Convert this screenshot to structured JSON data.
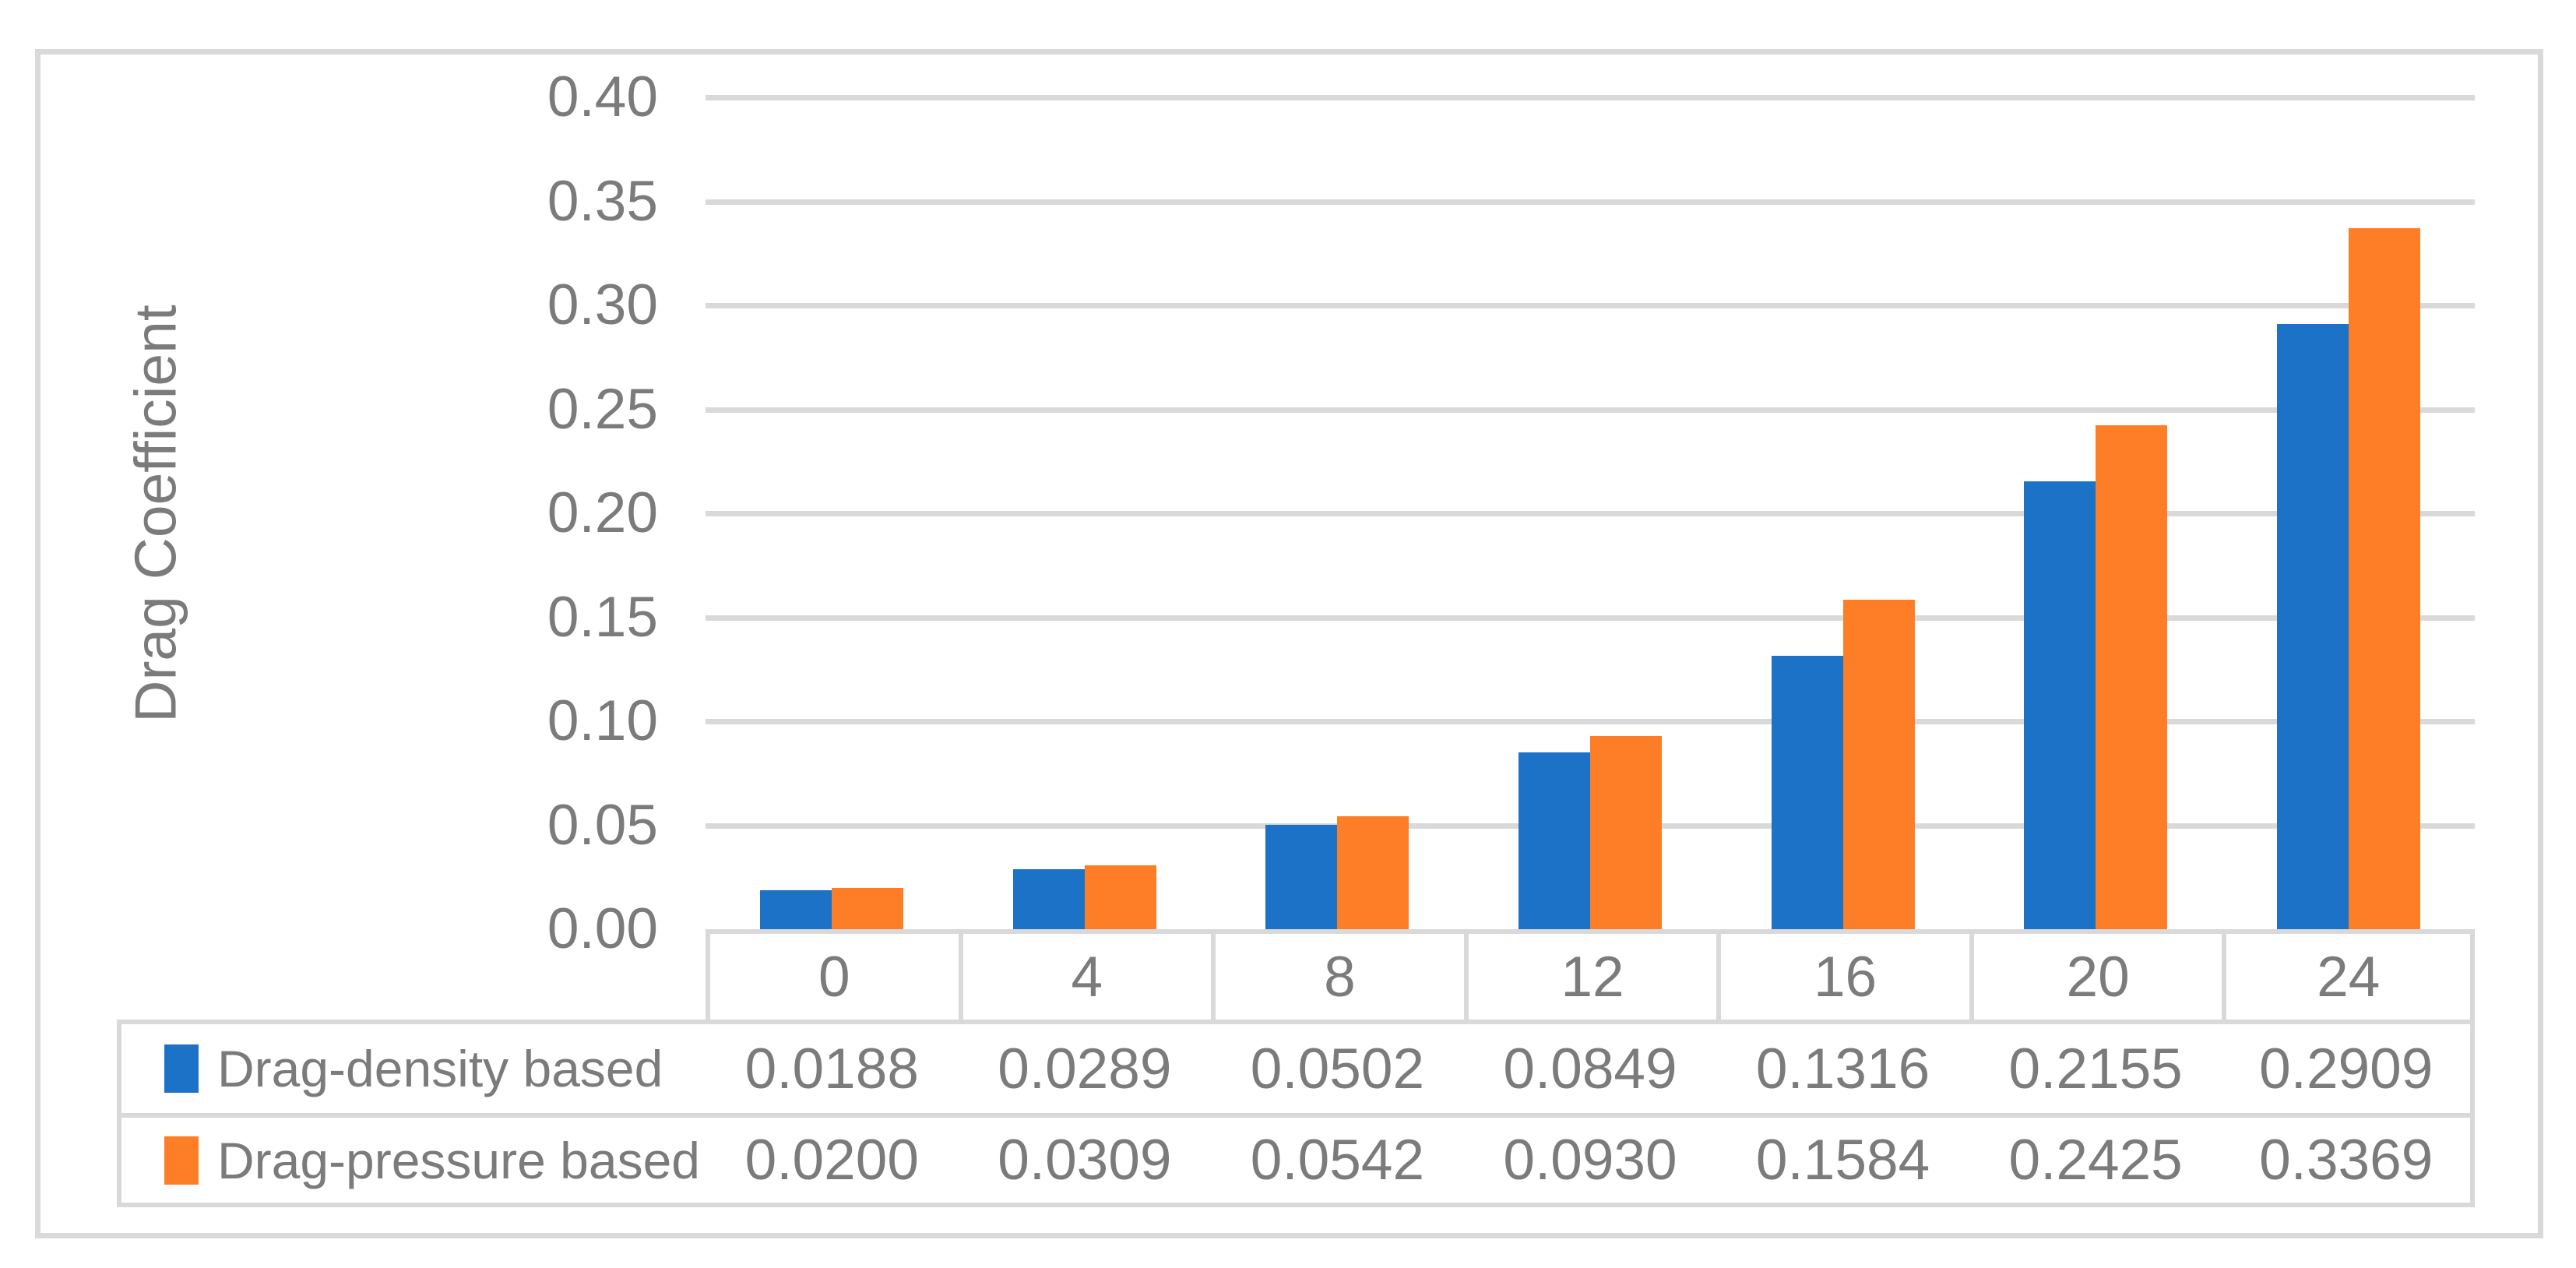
{
  "figure": {
    "background": "#ffffff",
    "frame_color": "#d9d9d9",
    "gridline_color": "#d9d9d9",
    "table_border_color": "#d9d9d9",
    "text_color": "#7b7b7b"
  },
  "chart_data": {
    "type": "bar",
    "title": "",
    "xlabel": "",
    "ylabel": "Drag Coefficient",
    "categories": [
      "0",
      "4",
      "8",
      "12",
      "16",
      "20",
      "24"
    ],
    "series": [
      {
        "name": "Drag-density based",
        "color": "#1b72c7",
        "values": [
          0.0188,
          0.0289,
          0.0502,
          0.0849,
          0.1316,
          0.2155,
          0.2909
        ],
        "values_display": [
          "0.0188",
          "0.0289",
          "0.0502",
          "0.0849",
          "0.1316",
          "0.2155",
          "0.2909"
        ]
      },
      {
        "name": "Drag-pressure based",
        "color": "#fd7e26",
        "values": [
          0.02,
          0.0309,
          0.0542,
          0.093,
          0.1584,
          0.2425,
          0.3369
        ],
        "values_display": [
          "0.0200",
          "0.0309",
          "0.0542",
          "0.0930",
          "0.1584",
          "0.2425",
          "0.3369"
        ]
      }
    ],
    "ylim": [
      0.0,
      0.4
    ],
    "ytick_step": 0.05,
    "yticks_top_to_bottom": [
      "0.40",
      "0.35",
      "0.30",
      "0.25",
      "0.20",
      "0.15",
      "0.10",
      "0.05",
      "0.00"
    ],
    "grid": true,
    "legend_position": "data-table-left",
    "data_table_shown": true
  }
}
